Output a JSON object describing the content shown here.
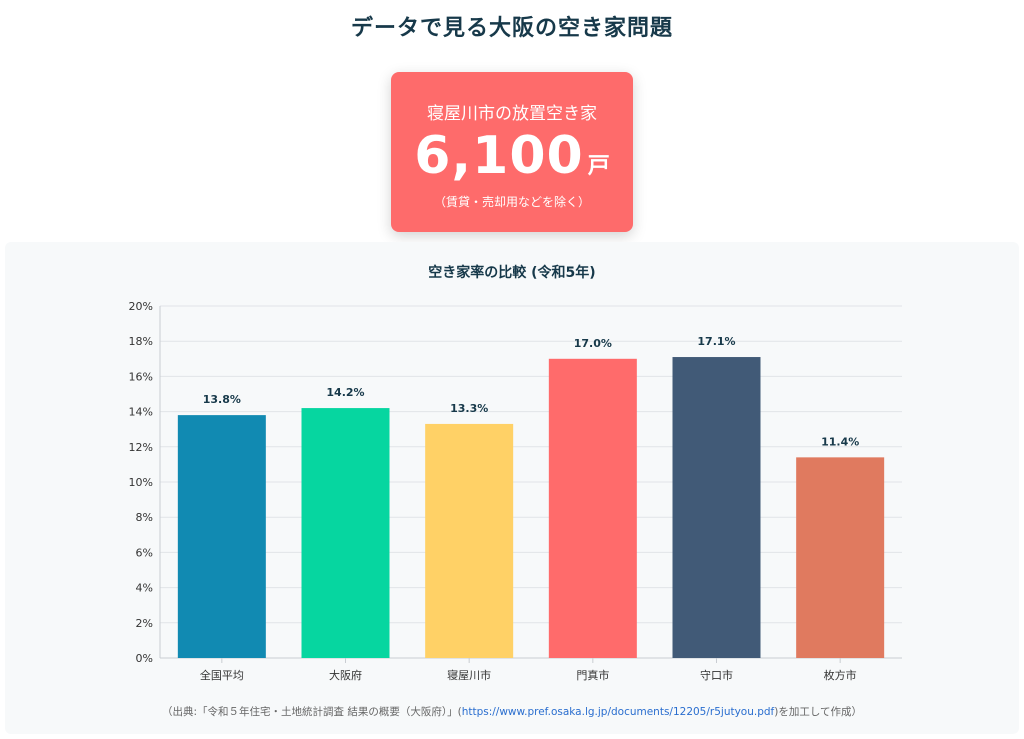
{
  "header": {
    "title": "データで見る大阪の空き家問題"
  },
  "stat_card": {
    "label": "寝屋川市の放置空き家",
    "value": "6,100",
    "unit": "戸",
    "note": "（賃貸・売却用などを除く）",
    "color": "#fe6b6b"
  },
  "source": {
    "prefix": "（出典:「令和５年住宅・土地統計調査 結果の概要（大阪府）」(",
    "url": "https://www.pref.osaka.lg.jp/documents/12205/r5jutyou.pdf",
    "suffix": ")を加工して作成）"
  },
  "chart_data": {
    "type": "bar",
    "title": "空き家率の比較 (令和5年)",
    "xlabel": "",
    "ylabel": "",
    "categories": [
      "全国平均",
      "大阪府",
      "寝屋川市",
      "門真市",
      "守口市",
      "枚方市"
    ],
    "values": [
      13.8,
      14.2,
      13.3,
      17.0,
      17.1,
      11.4
    ],
    "value_labels": [
      "13.8%",
      "14.2%",
      "13.3%",
      "17.0%",
      "17.1%",
      "11.4%"
    ],
    "colors": [
      "#118ab2",
      "#06d6a0",
      "#ffd166",
      "#ff6b6b",
      "#415a77",
      "#e07a5f"
    ],
    "ylim": [
      0,
      20
    ],
    "y_ticks": [
      "0%",
      "2%",
      "4%",
      "6%",
      "8%",
      "10%",
      "12%",
      "14%",
      "16%",
      "18%",
      "20%"
    ],
    "grid": true,
    "legend": "none"
  }
}
